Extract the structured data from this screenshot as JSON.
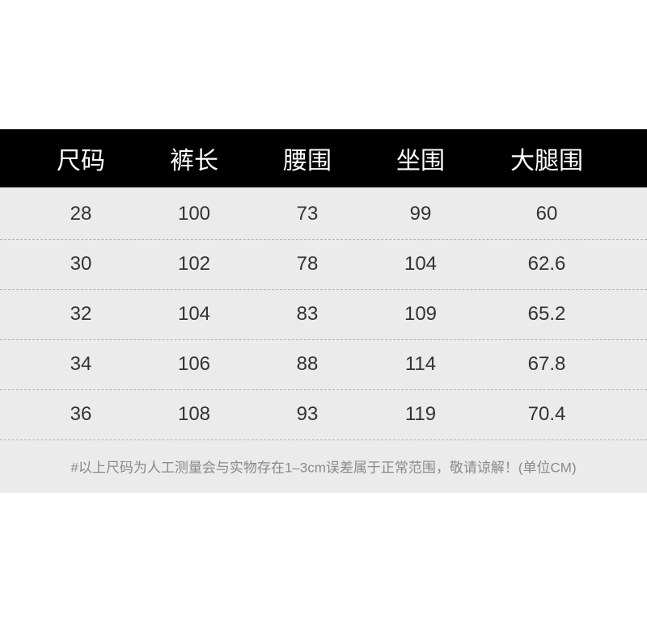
{
  "table": {
    "headers": [
      "尺码",
      "裤长",
      "腰围",
      "坐围",
      "大腿围"
    ],
    "rows": [
      [
        "28",
        "100",
        "73",
        "99",
        "60"
      ],
      [
        "30",
        "102",
        "78",
        "104",
        "62.6"
      ],
      [
        "32",
        "104",
        "83",
        "109",
        "65.2"
      ],
      [
        "34",
        "106",
        "88",
        "114",
        "67.8"
      ],
      [
        "36",
        "108",
        "93",
        "119",
        "70.4"
      ]
    ],
    "note": "#以上尺码为人工测量会与实物存在1–3cm误差属于正常范围，敬请谅解！(单位CM)"
  }
}
